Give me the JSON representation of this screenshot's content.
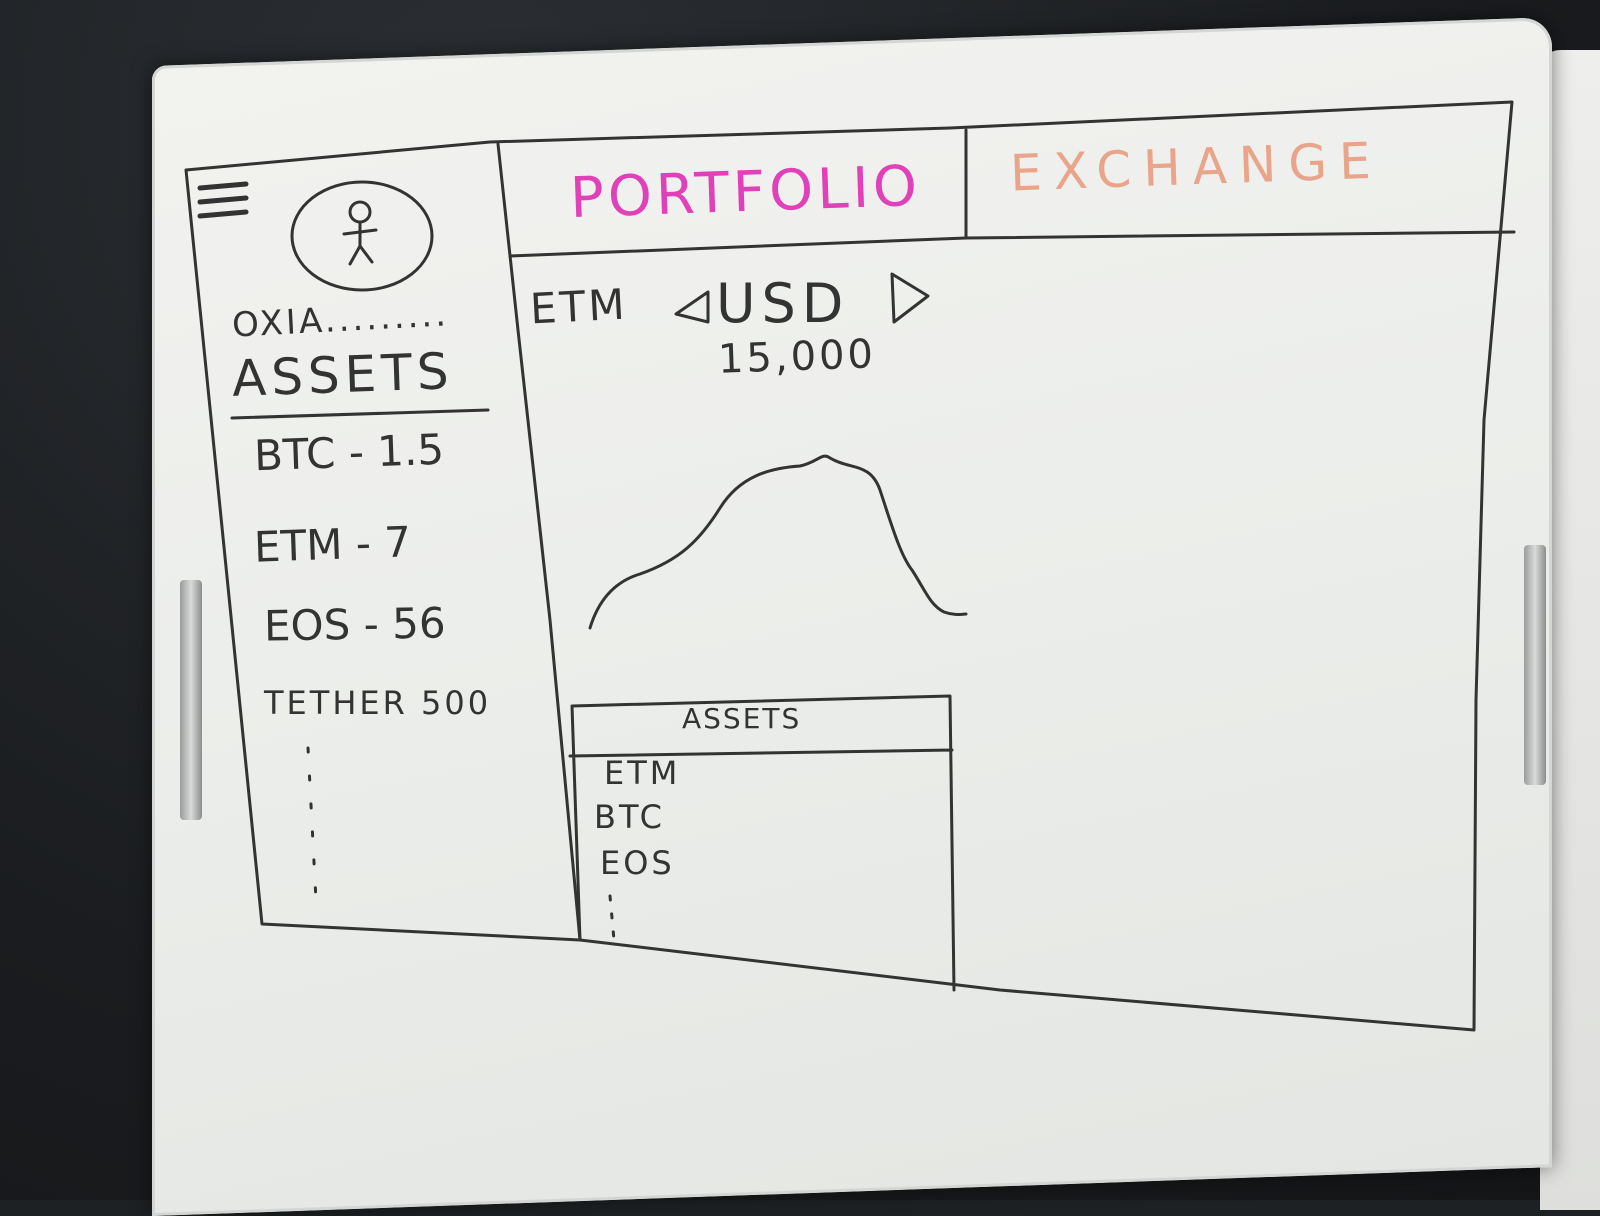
{
  "header": {
    "tabs": [
      {
        "label": "PORTFOLIO",
        "color": "#e040b8"
      },
      {
        "label": "EXCHANGE",
        "color": "#e9a58a"
      }
    ]
  },
  "sidebar": {
    "menu_icon": "hamburger-icon",
    "avatar_icon": "stick-figure-icon",
    "username": "OXIA.........",
    "assets_heading": "ASSETS",
    "assets": [
      {
        "label": "BTC - 1.5"
      },
      {
        "label": "ETM - 7"
      },
      {
        "label": "EOS - 56"
      },
      {
        "label": "TETHER 500"
      }
    ]
  },
  "main": {
    "pair_base": "ETM",
    "pair_quote": "USD",
    "left_arrow_icon": "triangle-left-icon",
    "right_arrow_icon": "triangle-right-icon",
    "price": "15,000",
    "assets_panel": {
      "heading": "ASSETS",
      "items": [
        "ETM",
        "BTC",
        "EOS"
      ]
    }
  },
  "colors": {
    "ink": "#333333",
    "portfolio_marker": "#e040b8",
    "exchange_marker": "#e9a58a"
  }
}
